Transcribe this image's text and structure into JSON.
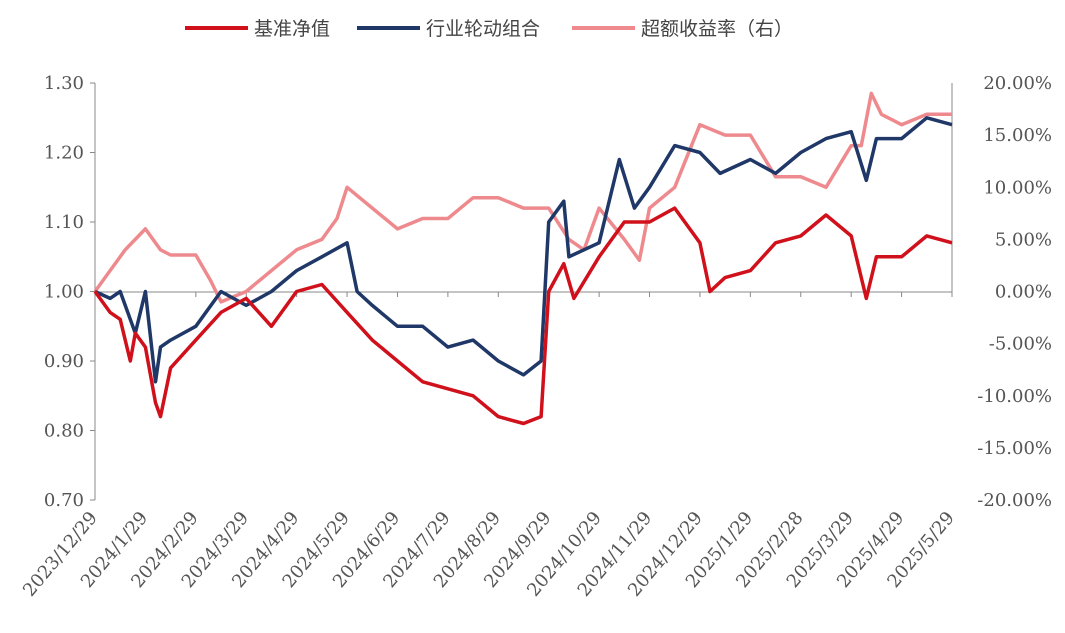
{
  "chart_data": {
    "type": "line",
    "title": "",
    "legend": {
      "placement": "top-center",
      "entries": [
        "基准净值",
        "行业轮动组合",
        "超额收益率（右）"
      ]
    },
    "x_tick_labels": [
      "2023/12/29",
      "2024/1/29",
      "2024/2/29",
      "2024/3/29",
      "2024/4/29",
      "2024/5/29",
      "2024/6/29",
      "2024/7/29",
      "2024/8/29",
      "2024/9/29",
      "2024/10/29",
      "2024/11/29",
      "2024/12/29",
      "2025/1/29",
      "2025/2/28",
      "2025/3/29",
      "2025/4/29",
      "2025/5/29"
    ],
    "x_unit": "months since 2023/12/29",
    "xlim": [
      0,
      17
    ],
    "y_left": {
      "ylim": [
        0.7,
        1.3
      ],
      "ticks": [
        "0.70",
        "0.80",
        "0.90",
        "1.00",
        "1.10",
        "1.20",
        "1.30"
      ]
    },
    "y_right": {
      "ylim": [
        -20,
        20
      ],
      "ticks": [
        "-20.00%",
        "-15.00%",
        "-10.00%",
        "-5.00%",
        "0.00%",
        "5.00%",
        "10.00%",
        "15.00%",
        "20.00%"
      ]
    },
    "series": [
      {
        "name": "基准净值",
        "axis": "left",
        "color": "#d0101b",
        "x": [
          0,
          0.3,
          0.5,
          0.7,
          0.8,
          1,
          1.2,
          1.3,
          1.5,
          2,
          2.5,
          3,
          3.5,
          4,
          4.5,
          5,
          5.5,
          6,
          6.5,
          7,
          7.5,
          8,
          8.5,
          8.85,
          9,
          9.3,
          9.5,
          10,
          10.5,
          11,
          11.5,
          12,
          12.2,
          12.5,
          13,
          13.5,
          14,
          14.5,
          15,
          15.3,
          15.5,
          16,
          16.5,
          17
        ],
        "y": [
          1.0,
          0.97,
          0.96,
          0.9,
          0.94,
          0.92,
          0.84,
          0.82,
          0.89,
          0.93,
          0.97,
          0.99,
          0.95,
          1.0,
          1.01,
          0.97,
          0.93,
          0.9,
          0.87,
          0.86,
          0.85,
          0.82,
          0.81,
          0.82,
          1.0,
          1.04,
          0.99,
          1.05,
          1.1,
          1.1,
          1.12,
          1.07,
          1.0,
          1.02,
          1.03,
          1.07,
          1.08,
          1.11,
          1.08,
          0.99,
          1.05,
          1.05,
          1.08,
          1.07
        ]
      },
      {
        "name": "行业轮动组合",
        "axis": "left",
        "color": "#1f3868",
        "x": [
          0,
          0.3,
          0.5,
          0.8,
          1,
          1.2,
          1.3,
          1.5,
          2,
          2.5,
          3,
          3.5,
          4,
          4.5,
          5,
          5.2,
          5.5,
          6,
          6.5,
          7,
          7.5,
          8,
          8.5,
          8.85,
          9,
          9.3,
          9.4,
          10,
          10.4,
          10.7,
          11,
          11.5,
          12,
          12.4,
          13,
          13.5,
          14,
          14.5,
          15,
          15.3,
          15.5,
          16,
          16.5,
          17
        ],
        "y": [
          1.0,
          0.99,
          1.0,
          0.94,
          1.0,
          0.87,
          0.92,
          0.93,
          0.95,
          1.0,
          0.98,
          1.0,
          1.03,
          1.05,
          1.07,
          1.0,
          0.98,
          0.95,
          0.95,
          0.92,
          0.93,
          0.9,
          0.88,
          0.9,
          1.1,
          1.13,
          1.05,
          1.07,
          1.19,
          1.12,
          1.15,
          1.21,
          1.2,
          1.17,
          1.19,
          1.17,
          1.2,
          1.22,
          1.23,
          1.16,
          1.22,
          1.22,
          1.25,
          1.24
        ]
      },
      {
        "name": "超额收益率（右）",
        "axis": "right",
        "color": "#ee8a8e",
        "x": [
          0,
          0.3,
          0.6,
          1,
          1.3,
          1.5,
          2,
          2.3,
          2.5,
          3,
          3.5,
          4,
          4.5,
          4.8,
          5,
          5.5,
          6,
          6.5,
          7,
          7.5,
          8,
          8.5,
          9,
          9.4,
          9.7,
          10,
          10.5,
          10.8,
          11,
          11.5,
          12,
          12.5,
          13,
          13.5,
          14,
          14.5,
          15,
          15.2,
          15.4,
          15.6,
          16,
          16.5,
          17
        ],
        "y": [
          0,
          2,
          4,
          6,
          4,
          3.5,
          3.5,
          1,
          -1,
          0,
          2,
          4,
          5,
          7,
          10,
          8,
          6,
          7,
          7,
          9,
          9,
          8,
          8,
          5,
          4,
          8,
          5,
          3,
          8,
          10,
          16,
          15,
          15,
          11,
          11,
          10,
          14,
          14,
          19,
          17,
          16,
          17,
          17
        ]
      }
    ]
  }
}
